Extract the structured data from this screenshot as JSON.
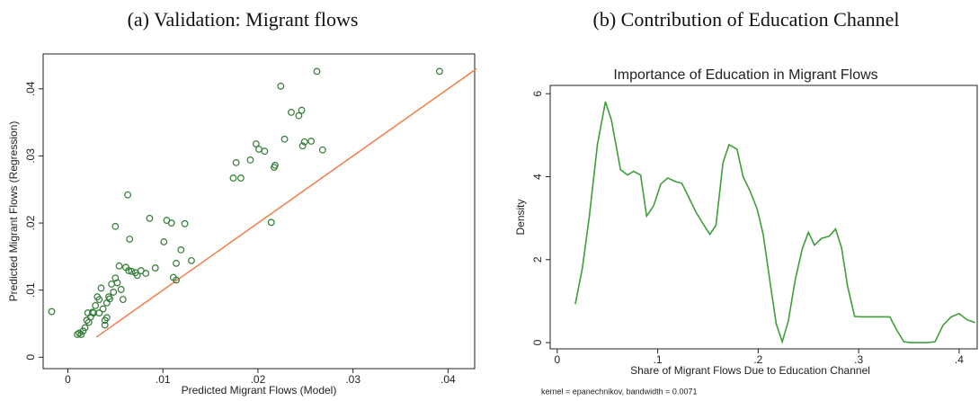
{
  "chart_data": [
    {
      "type": "scatter",
      "panel_title": "(a) Validation: Migrant flows",
      "xlabel": "Predicted Migrant Flows (Model)",
      "ylabel": "Predicted Migrant Flows (Regression)",
      "color": "#2e7d32",
      "x": [
        -0.0017,
        0.001,
        0.0012,
        0.0014,
        0.0016,
        0.0018,
        0.002,
        0.0022,
        0.0021,
        0.0024,
        0.0026,
        0.0027,
        0.0029,
        0.0031,
        0.0033,
        0.0035,
        0.0033,
        0.0037,
        0.0039,
        0.0041,
        0.0043,
        0.0044,
        0.0046,
        0.0039,
        0.0041,
        0.0048,
        0.005,
        0.0052,
        0.0054,
        0.0056,
        0.0058,
        0.0061,
        0.0064,
        0.005,
        0.0063,
        0.0065,
        0.0067,
        0.0071,
        0.0073,
        0.0077,
        0.0082,
        0.0086,
        0.0092,
        0.0101,
        0.0104,
        0.0109,
        0.0111,
        0.0114,
        0.0119,
        0.0114,
        0.0123,
        0.013,
        0.0177,
        0.0174,
        0.0182,
        0.0192,
        0.0198,
        0.0201,
        0.0207,
        0.0217,
        0.0218,
        0.0214,
        0.0224,
        0.0228,
        0.0235,
        0.0243,
        0.0246,
        0.0249,
        0.0247,
        0.0256,
        0.0262,
        0.0268,
        0.0391
      ],
      "y": [
        0.0068,
        0.0034,
        0.0036,
        0.0034,
        0.0039,
        0.0044,
        0.0055,
        0.0052,
        0.0066,
        0.006,
        0.0067,
        0.0066,
        0.0077,
        0.009,
        0.0086,
        0.0103,
        0.0066,
        0.0072,
        0.0055,
        0.0081,
        0.009,
        0.0087,
        0.0109,
        0.0048,
        0.0059,
        0.0097,
        0.0118,
        0.0111,
        0.0136,
        0.0101,
        0.0086,
        0.0134,
        0.0129,
        0.0195,
        0.0242,
        0.0176,
        0.0128,
        0.0126,
        0.0122,
        0.0129,
        0.0125,
        0.0207,
        0.0133,
        0.0172,
        0.0204,
        0.02,
        0.0119,
        0.014,
        0.016,
        0.0115,
        0.0199,
        0.0144,
        0.029,
        0.0267,
        0.0267,
        0.0294,
        0.0318,
        0.031,
        0.0307,
        0.0283,
        0.0286,
        0.0201,
        0.0404,
        0.0325,
        0.0365,
        0.036,
        0.0368,
        0.0321,
        0.0315,
        0.0322,
        0.0426,
        0.0309,
        0.0426
      ],
      "fit_line": {
        "x": [
          0.003,
          0.043
        ],
        "y": [
          0.003,
          0.043
        ],
        "color": "#ef7f4a"
      },
      "xlim": [
        -0.0026,
        0.0428
      ],
      "ylim": [
        -0.0017,
        0.0452
      ],
      "xticks": [
        0,
        {
          "value": 0.01,
          "label": ".01"
        },
        {
          "value": 0.02,
          "label": ".02"
        },
        {
          "value": 0.03,
          "label": ".03"
        },
        {
          "value": 0.04,
          "label": ".04"
        }
      ],
      "yticks": [
        0,
        {
          "value": 0.01,
          "label": ".01"
        },
        {
          "value": 0.02,
          "label": ".02"
        },
        {
          "value": 0.03,
          "label": ".03"
        },
        {
          "value": 0.04,
          "label": ".04"
        }
      ]
    },
    {
      "type": "line",
      "panel_title": "(b) Contribution of Education Channel",
      "title": "Importance of Education in Migrant Flows",
      "xlabel": "Share of Migrant Flows Due to Education Channel",
      "ylabel": "Density",
      "note": "kernel = epanechnikov, bandwidth = 0.0071",
      "color": "#3f9e3a",
      "x": [
        0.018,
        0.025,
        0.032,
        0.04,
        0.048,
        0.054,
        0.063,
        0.07,
        0.076,
        0.083,
        0.089,
        0.096,
        0.103,
        0.11,
        0.117,
        0.124,
        0.131,
        0.138,
        0.146,
        0.152,
        0.158,
        0.165,
        0.171,
        0.179,
        0.185,
        0.192,
        0.199,
        0.205,
        0.212,
        0.218,
        0.224,
        0.23,
        0.237,
        0.244,
        0.25,
        0.256,
        0.263,
        0.271,
        0.277,
        0.283,
        0.289,
        0.296,
        0.303,
        0.31,
        0.317,
        0.324,
        0.331,
        0.338,
        0.345,
        0.352,
        0.36,
        0.368,
        0.376,
        0.384,
        0.392,
        0.4,
        0.408,
        0.416
      ],
      "y": [
        0.93,
        1.79,
        3.05,
        4.77,
        5.81,
        5.36,
        4.17,
        4.04,
        4.13,
        4.04,
        3.05,
        3.3,
        3.82,
        3.97,
        3.89,
        3.84,
        3.5,
        3.15,
        2.83,
        2.61,
        2.83,
        4.34,
        4.77,
        4.66,
        4.0,
        3.65,
        3.22,
        2.61,
        1.43,
        0.45,
        0.02,
        0.52,
        1.53,
        2.27,
        2.66,
        2.35,
        2.51,
        2.57,
        2.74,
        2.29,
        1.36,
        0.63,
        0.62,
        0.62,
        0.62,
        0.62,
        0.62,
        0.3,
        0.02,
        0.0,
        0.0,
        0.0,
        0.02,
        0.42,
        0.62,
        0.7,
        0.55,
        0.48
      ],
      "xlim": [
        -0.007,
        0.418
      ],
      "ylim": [
        -0.15,
        6.2
      ],
      "xticks": [
        0,
        {
          "value": 0.1,
          "label": ".1"
        },
        {
          "value": 0.2,
          "label": ".2"
        },
        {
          "value": 0.3,
          "label": ".3"
        },
        {
          "value": 0.4,
          "label": ".4"
        }
      ],
      "yticks": [
        0,
        2,
        4,
        6
      ]
    }
  ]
}
